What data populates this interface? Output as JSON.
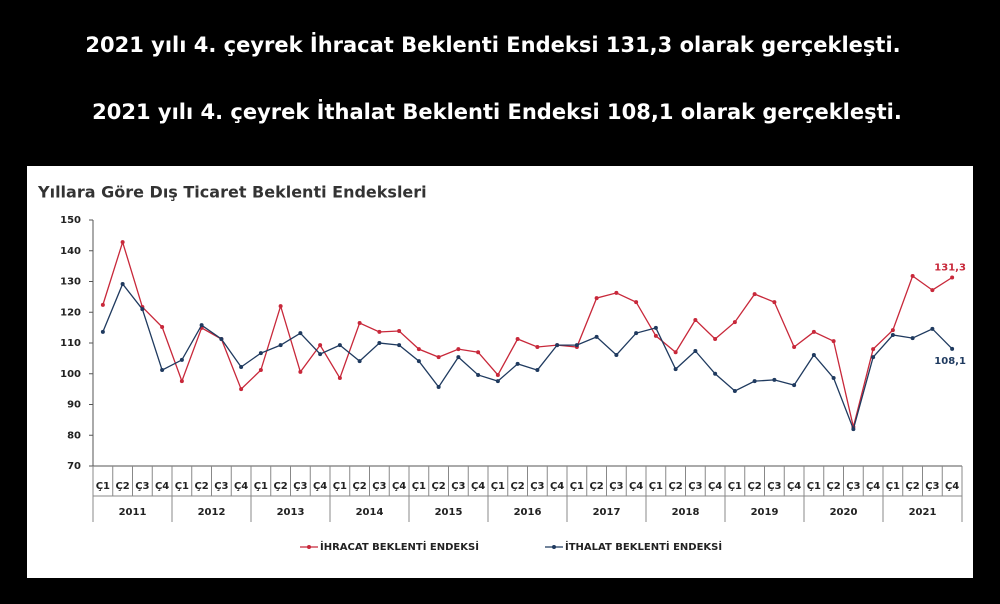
{
  "header": {
    "line1": "2021 yılı 4. çeyrek İhracat Beklenti Endeksi 131,3 olarak gerçekleşti.",
    "line2": "2021 yılı 4. çeyrek İthalat Beklenti Endeksi 108,1 olarak gerçekleşti."
  },
  "chart_data": {
    "type": "line",
    "title": "Yıllara Göre Dış Ticaret Beklenti Endeksleri",
    "categories": [
      "Ç1",
      "Ç2",
      "Ç3",
      "Ç4",
      "Ç1",
      "Ç2",
      "Ç3",
      "Ç4",
      "Ç1",
      "Ç2",
      "Ç3",
      "Ç4",
      "Ç1",
      "Ç2",
      "Ç3",
      "Ç4",
      "Ç1",
      "Ç2",
      "Ç3",
      "Ç4",
      "Ç1",
      "Ç2",
      "Ç3",
      "Ç4",
      "Ç1",
      "Ç2",
      "Ç3",
      "Ç4",
      "Ç1",
      "Ç2",
      "Ç3",
      "Ç4",
      "Ç1",
      "Ç2",
      "Ç3",
      "Ç4",
      "Ç1",
      "Ç2",
      "Ç3",
      "Ç4",
      "Ç1",
      "Ç2",
      "Ç3",
      "Ç4"
    ],
    "years": [
      "2011",
      "2012",
      "2013",
      "2014",
      "2015",
      "2016",
      "2017",
      "2018",
      "2019",
      "2020",
      "2021"
    ],
    "series": [
      {
        "name": "İHRACAT BEKLENTİ ENDEKSİ",
        "color": "#c8283a",
        "values": [
          122.4,
          142.8,
          121.7,
          115.2,
          97.6,
          114.9,
          111.3,
          95,
          101.2,
          122,
          100.6,
          109.3,
          98.6,
          116.5,
          113.6,
          113.9,
          108,
          105.4,
          108,
          107,
          99.6,
          111.3,
          108.7,
          109.3,
          108.7,
          124.6,
          126.3,
          123.3,
          112.3,
          107,
          117.5,
          111.3,
          116.8,
          125.9,
          123.3,
          108.7,
          113.6,
          110.6,
          82.7,
          108,
          114.2,
          131.8,
          127.2,
          131.3
        ],
        "value_labels": [
          null,
          null,
          null,
          null,
          null,
          null,
          null,
          null,
          null,
          null,
          null,
          null,
          null,
          null,
          null,
          null,
          null,
          null,
          null,
          null,
          null,
          null,
          null,
          null,
          null,
          null,
          null,
          null,
          null,
          null,
          null,
          null,
          null,
          null,
          null,
          null,
          null,
          null,
          null,
          null,
          null,
          null,
          null,
          "131,3"
        ]
      },
      {
        "name": "İTHALAT BEKLENTİ ENDEKSİ",
        "color": "#1f3a5f",
        "values": [
          113.6,
          129.2,
          121,
          101.2,
          104.5,
          115.8,
          111.3,
          102.2,
          106.7,
          109.3,
          113.2,
          106.4,
          109.3,
          104.1,
          110,
          109.3,
          104.1,
          95.7,
          105.4,
          99.6,
          97.6,
          103.2,
          101.2,
          109.3,
          109.3,
          112,
          106.1,
          113.2,
          114.9,
          101.5,
          107.4,
          100,
          94.4,
          97.6,
          98,
          96.3,
          106.1,
          98.6,
          82,
          105.4,
          112.6,
          111.6,
          114.6,
          108.1
        ],
        "value_labels": [
          null,
          null,
          null,
          null,
          null,
          null,
          null,
          null,
          null,
          null,
          null,
          null,
          null,
          null,
          null,
          null,
          null,
          null,
          null,
          null,
          null,
          null,
          null,
          null,
          null,
          null,
          null,
          null,
          null,
          null,
          null,
          null,
          null,
          null,
          null,
          null,
          null,
          null,
          null,
          null,
          null,
          null,
          null,
          "108,1"
        ]
      }
    ],
    "ylim": [
      70,
      150
    ],
    "yticks": [
      70,
      80,
      90,
      100,
      110,
      120,
      130,
      140,
      150
    ],
    "grid": false,
    "legend": "bottom"
  }
}
